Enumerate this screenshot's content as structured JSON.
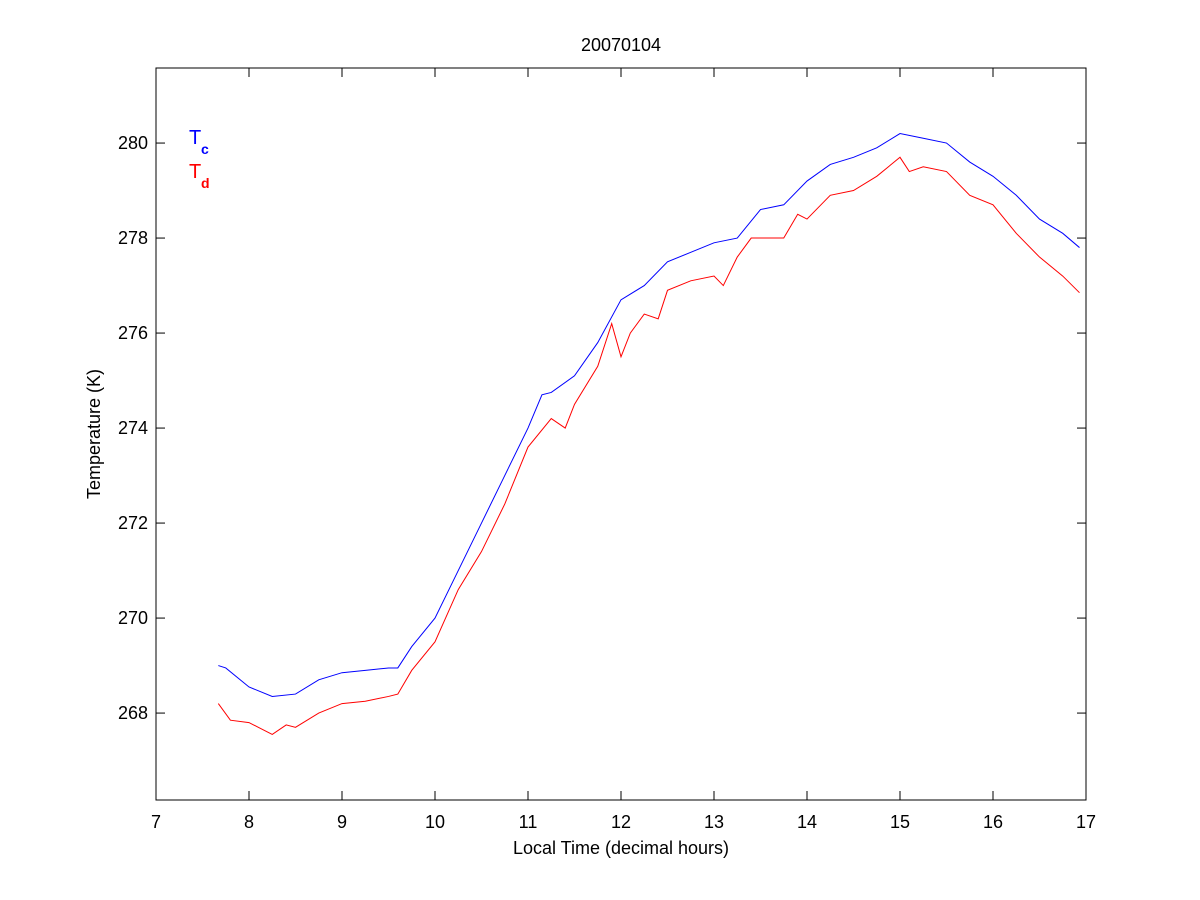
{
  "chart_data": {
    "type": "line",
    "title": "20070104",
    "x_label": "Local Time (decimal hours)",
    "y_label": "Temperature (K)",
    "xlim": [
      7,
      17
    ],
    "xticks": [
      7,
      8,
      9,
      10,
      11,
      12,
      13,
      14,
      15,
      16,
      17
    ],
    "ylim": [
      266.17,
      281.58
    ],
    "yticks": [
      268,
      270,
      272,
      274,
      276,
      278,
      280
    ],
    "legend": "top-left",
    "series": [
      {
        "name": "T",
        "subscript": "c",
        "color": "#0000ff",
        "x": [
          7.67,
          7.75,
          8.0,
          8.25,
          8.5,
          8.75,
          9.0,
          9.25,
          9.5,
          9.6,
          9.75,
          10.0,
          10.25,
          10.5,
          10.75,
          11.0,
          11.15,
          11.25,
          11.5,
          11.75,
          12.0,
          12.25,
          12.5,
          12.75,
          13.0,
          13.25,
          13.5,
          13.75,
          14.0,
          14.25,
          14.5,
          14.75,
          15.0,
          15.25,
          15.5,
          15.75,
          16.0,
          16.25,
          16.5,
          16.75,
          16.93
        ],
        "values": [
          269.0,
          268.95,
          268.55,
          268.35,
          268.4,
          268.7,
          268.85,
          268.9,
          268.95,
          268.95,
          269.4,
          270.0,
          271.0,
          272.0,
          273.0,
          274.0,
          274.7,
          274.75,
          275.1,
          275.8,
          276.7,
          277.0,
          277.5,
          277.7,
          277.9,
          278.0,
          278.6,
          278.7,
          279.2,
          279.55,
          279.7,
          279.9,
          280.2,
          280.1,
          280.0,
          279.6,
          279.3,
          278.9,
          278.4,
          278.1,
          277.8
        ]
      },
      {
        "name": "T",
        "subscript": "d",
        "color": "#ff0000",
        "x": [
          7.67,
          7.8,
          8.0,
          8.1,
          8.25,
          8.4,
          8.5,
          8.75,
          9.0,
          9.25,
          9.5,
          9.6,
          9.75,
          10.0,
          10.25,
          10.5,
          10.75,
          11.0,
          11.25,
          11.4,
          11.5,
          11.75,
          11.9,
          12.0,
          12.1,
          12.25,
          12.4,
          12.5,
          12.75,
          13.0,
          13.1,
          13.25,
          13.4,
          13.5,
          13.75,
          13.9,
          14.0,
          14.25,
          14.5,
          14.75,
          15.0,
          15.1,
          15.25,
          15.5,
          15.75,
          16.0,
          16.25,
          16.5,
          16.75,
          16.93
        ],
        "values": [
          268.2,
          267.85,
          267.8,
          267.7,
          267.55,
          267.75,
          267.7,
          268.0,
          268.2,
          268.25,
          268.35,
          268.4,
          268.9,
          269.5,
          270.6,
          271.4,
          272.4,
          273.6,
          274.2,
          274.0,
          274.5,
          275.3,
          276.2,
          275.5,
          276.0,
          276.4,
          276.3,
          276.9,
          277.1,
          277.2,
          277.0,
          277.6,
          278.0,
          278.0,
          278.0,
          278.5,
          278.4,
          278.9,
          279.0,
          279.3,
          279.7,
          279.4,
          279.5,
          279.4,
          278.9,
          278.7,
          278.1,
          277.6,
          277.2,
          276.85
        ]
      }
    ]
  }
}
